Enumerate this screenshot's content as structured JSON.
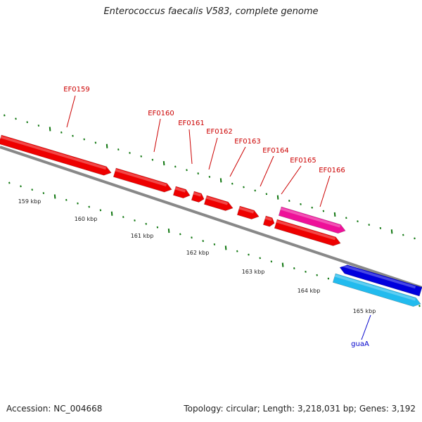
{
  "title": "Enterococcus faecalis V583, complete genome",
  "footer": {
    "accession": "Accession: NC_004668",
    "summary": "Topology: circular; Length: 3,218,031 bp; Genes: 3,192"
  },
  "scale_labels": [
    "159 kbp",
    "160 kbp",
    "161 kbp",
    "162 kbp",
    "163 kbp",
    "164 kbp",
    "165 kbp"
  ],
  "genes": [
    {
      "name": "EF0159",
      "color": "#ee0000",
      "labelColor": "#cc0000",
      "strand": "forward"
    },
    {
      "name": "EF0160",
      "color": "#ee0000",
      "labelColor": "#cc0000",
      "strand": "forward"
    },
    {
      "name": "EF0161",
      "color": "#ee0000",
      "labelColor": "#cc0000",
      "strand": "forward"
    },
    {
      "name": "EF0162",
      "color": "#ee0000",
      "labelColor": "#cc0000",
      "strand": "forward"
    },
    {
      "name": "EF0163",
      "color": "#ee0000",
      "labelColor": "#cc0000",
      "strand": "forward"
    },
    {
      "name": "EF0164",
      "color": "#ee0000",
      "labelColor": "#cc0000",
      "strand": "forward"
    },
    {
      "name": "EF0165",
      "color": "#ee1199",
      "labelColor": "#cc0000",
      "strand": "forward"
    },
    {
      "name": "EF0166",
      "color": "#ee0000",
      "labelColor": "#cc0000",
      "strand": "forward"
    },
    {
      "name": "guaA",
      "color": "#22bbee",
      "labelColor": "#0000cc",
      "strand": "forward"
    },
    {
      "name": "",
      "color": "#0000dd",
      "labelColor": "#0000cc",
      "strand": "reverse"
    }
  ],
  "colors": {
    "backbone": "#888888",
    "tick": "#117711"
  }
}
